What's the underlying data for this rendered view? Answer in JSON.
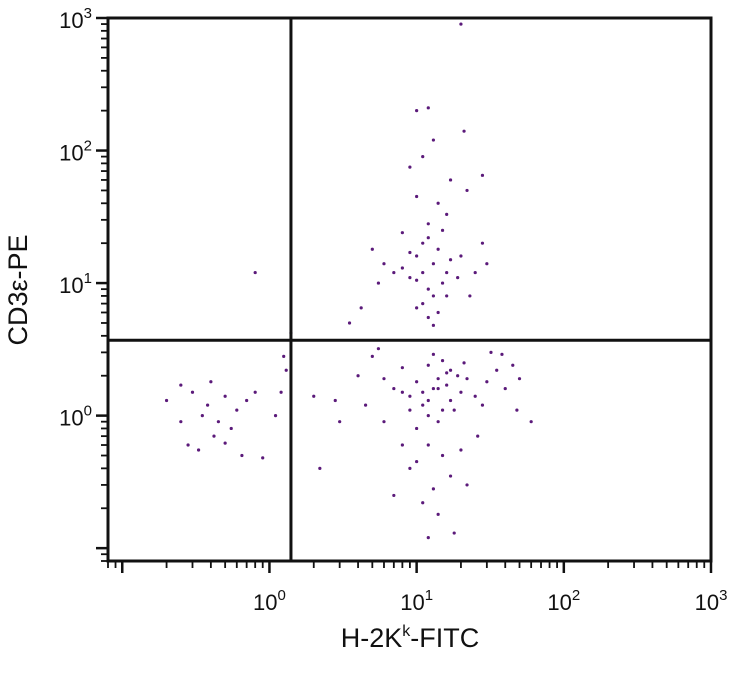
{
  "chart_data": {
    "type": "scatter",
    "title": "",
    "xlabel": {
      "base": "H-2K",
      "sup": "k",
      "suffix": "-FITC"
    },
    "ylabel": "CD3ε-PE",
    "x_scale": "log",
    "y_scale": "log",
    "xlim": [
      0.08,
      1000
    ],
    "ylim": [
      0.08,
      1000
    ],
    "x_ticks": [
      {
        "value": 1,
        "base": "10",
        "exp": "0"
      },
      {
        "value": 10,
        "base": "10",
        "exp": "1"
      },
      {
        "value": 100,
        "base": "10",
        "exp": "2"
      },
      {
        "value": 1000,
        "base": "10",
        "exp": "3"
      }
    ],
    "y_ticks": [
      {
        "value": 1,
        "base": "10",
        "exp": "0"
      },
      {
        "value": 10,
        "base": "10",
        "exp": "1"
      },
      {
        "value": 100,
        "base": "10",
        "exp": "2"
      },
      {
        "value": 1000,
        "base": "10",
        "exp": "3"
      }
    ],
    "quadrant_gates": {
      "x": 1.4,
      "y": 3.7
    },
    "point_color": "#5b1a7a",
    "axis_color": "#111111",
    "grid": false,
    "series": [
      {
        "name": "",
        "points": [
          [
            13,
            1.6
          ],
          [
            9,
            1.4
          ],
          [
            16,
            2.1
          ],
          [
            11,
            1.2
          ],
          [
            14,
            1.9
          ],
          [
            20,
            1.5
          ],
          [
            8,
            2.3
          ],
          [
            12,
            1.0
          ],
          [
            17,
            1.3
          ],
          [
            10,
            1.8
          ],
          [
            15,
            2.6
          ],
          [
            18,
            1.1
          ],
          [
            7,
            1.6
          ],
          [
            22,
            1.9
          ],
          [
            12,
            2.4
          ],
          [
            14,
            0.9
          ],
          [
            9,
            1.1
          ],
          [
            19,
            2.0
          ],
          [
            11,
            1.5
          ],
          [
            16,
            1.7
          ],
          [
            13,
            2.9
          ],
          [
            25,
            1.4
          ],
          [
            6,
            1.9
          ],
          [
            10,
            0.8
          ],
          [
            21,
            2.5
          ],
          [
            12,
            1.3
          ],
          [
            15,
            1.1
          ],
          [
            8,
            1.5
          ],
          [
            17,
            2.2
          ],
          [
            14,
            1.6
          ],
          [
            30,
            1.8
          ],
          [
            35,
            2.2
          ],
          [
            28,
            1.2
          ],
          [
            40,
            1.6
          ],
          [
            45,
            2.4
          ],
          [
            5,
            2.8
          ],
          [
            4.5,
            1.2
          ],
          [
            6,
            0.9
          ],
          [
            26,
            0.7
          ],
          [
            32,
            3.0
          ],
          [
            50,
            1.9
          ],
          [
            38,
            2.9
          ],
          [
            4,
            2.0
          ],
          [
            5.5,
            3.2
          ],
          [
            48,
            1.1
          ],
          [
            60,
            0.9
          ],
          [
            12,
            0.6
          ],
          [
            15,
            0.5
          ],
          [
            10,
            0.45
          ],
          [
            17,
            0.35
          ],
          [
            13,
            0.28
          ],
          [
            11,
            0.22
          ],
          [
            20,
            0.55
          ],
          [
            9,
            0.4
          ],
          [
            14,
            0.18
          ],
          [
            18,
            0.13
          ],
          [
            8,
            0.6
          ],
          [
            12,
            0.12
          ],
          [
            22,
            0.3
          ],
          [
            7,
            0.25
          ],
          [
            11,
            12
          ],
          [
            13,
            14
          ],
          [
            9,
            11
          ],
          [
            15,
            10
          ],
          [
            10,
            16
          ],
          [
            12,
            9
          ],
          [
            14,
            18
          ],
          [
            8,
            13
          ],
          [
            16,
            12
          ],
          [
            11,
            20
          ],
          [
            13,
            8
          ],
          [
            9,
            17
          ],
          [
            17,
            15
          ],
          [
            10,
            10.5
          ],
          [
            12,
            22
          ],
          [
            7,
            12
          ],
          [
            19,
            11
          ],
          [
            15,
            25
          ],
          [
            11,
            7
          ],
          [
            14,
            6
          ],
          [
            12,
            5.5
          ],
          [
            13,
            4.8
          ],
          [
            10,
            6.5
          ],
          [
            16,
            8
          ],
          [
            20,
            16
          ],
          [
            25,
            12
          ],
          [
            6,
            14
          ],
          [
            5,
            18
          ],
          [
            28,
            20
          ],
          [
            23,
            8
          ],
          [
            5.5,
            10
          ],
          [
            30,
            14
          ],
          [
            14,
            40
          ],
          [
            17,
            60
          ],
          [
            10,
            45
          ],
          [
            22,
            50
          ],
          [
            11,
            90
          ],
          [
            10,
            200
          ],
          [
            12,
            210
          ],
          [
            13,
            120
          ],
          [
            9,
            75
          ],
          [
            21,
            140
          ],
          [
            28,
            65
          ],
          [
            12,
            28
          ],
          [
            16,
            33
          ],
          [
            8,
            24
          ],
          [
            20,
            900
          ],
          [
            0.8,
            12
          ],
          [
            1.4,
            4.2
          ],
          [
            1.3,
            2.2
          ],
          [
            1.2,
            1.5
          ],
          [
            1.25,
            2.8
          ],
          [
            0.25,
            1.7
          ],
          [
            0.3,
            1.5
          ],
          [
            0.4,
            1.8
          ],
          [
            0.35,
            1.0
          ],
          [
            0.45,
            0.9
          ],
          [
            0.5,
            1.4
          ],
          [
            0.6,
            1.1
          ],
          [
            0.7,
            1.3
          ],
          [
            0.55,
            0.8
          ],
          [
            0.28,
            0.6
          ],
          [
            0.33,
            0.55
          ],
          [
            0.42,
            0.7
          ],
          [
            0.65,
            0.5
          ],
          [
            0.9,
            0.48
          ],
          [
            0.2,
            1.3
          ],
          [
            1.1,
            1.0
          ],
          [
            0.8,
            1.5
          ],
          [
            0.5,
            0.62
          ],
          [
            0.38,
            1.2
          ],
          [
            0.25,
            0.9
          ],
          [
            2.2,
            0.4
          ],
          [
            3.0,
            0.9
          ],
          [
            2.8,
            1.3
          ],
          [
            2.0,
            1.4
          ],
          [
            3.5,
            5.0
          ],
          [
            4.2,
            6.5
          ]
        ]
      }
    ]
  }
}
